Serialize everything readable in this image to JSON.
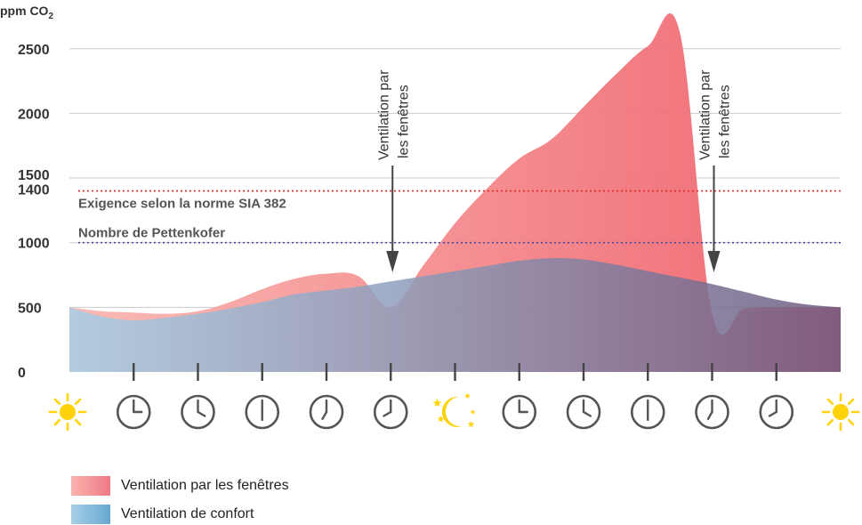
{
  "chart_data": {
    "type": "area",
    "ylabel": "ppm CO",
    "ylabel_subscript": "2",
    "ylim": [
      0,
      2700
    ],
    "y_ticks": [
      0,
      500,
      1000,
      1400,
      1500,
      2000,
      2500
    ],
    "x": [
      0,
      0.5,
      1,
      1.5,
      2,
      2.5,
      3,
      3.5,
      4,
      4.5,
      5,
      5.5,
      6,
      6.5,
      7,
      7.5,
      8,
      8.5,
      9,
      9.5,
      10,
      10.5,
      11,
      11.5,
      12
    ],
    "x_markers": [
      {
        "x": 0,
        "icon": "sun-icon"
      },
      {
        "x": 1,
        "icon": "clock-icon",
        "clock": "3:00"
      },
      {
        "x": 2,
        "icon": "clock-icon",
        "clock": "4:00"
      },
      {
        "x": 3,
        "icon": "clock-icon",
        "clock": "6:00"
      },
      {
        "x": 4,
        "icon": "clock-icon",
        "clock": "7:00"
      },
      {
        "x": 5,
        "icon": "clock-icon",
        "clock": "8:00"
      },
      {
        "x": 6,
        "icon": "moon-stars-icon"
      },
      {
        "x": 7,
        "icon": "clock-icon",
        "clock": "3:00"
      },
      {
        "x": 8,
        "icon": "clock-icon",
        "clock": "4:00"
      },
      {
        "x": 9,
        "icon": "clock-icon",
        "clock": "6:00"
      },
      {
        "x": 10,
        "icon": "clock-icon",
        "clock": "7:00"
      },
      {
        "x": 11,
        "icon": "clock-icon",
        "clock": "8:00"
      },
      {
        "x": 12,
        "icon": "sun-icon"
      }
    ],
    "series": [
      {
        "name": "Ventilation par les fenêtres",
        "color_light": "#f9b4ae",
        "color_dark": "#ee5a66",
        "values": [
          500,
          470,
          460,
          450,
          470,
          540,
          640,
          720,
          760,
          740,
          500,
          820,
          1150,
          1420,
          1650,
          1800,
          2050,
          2300,
          2520,
          2620,
          450,
          490,
          500,
          500,
          500
        ]
      },
      {
        "name": "Ventilation de confort",
        "color_light": "#a6cfe6",
        "color_dark": "#6e5a80",
        "values": [
          500,
          430,
          400,
          420,
          450,
          490,
          540,
          600,
          630,
          660,
          700,
          740,
          780,
          820,
          860,
          880,
          870,
          830,
          780,
          730,
          680,
          620,
          560,
          520,
          500
        ]
      }
    ],
    "reference_lines": [
      {
        "y": 1400,
        "label": "Exigence selon la norme SIA 382",
        "color": "#e02828"
      },
      {
        "y": 1000,
        "label": "Nombre de Pettenkofer",
        "color": "#4648a6"
      }
    ],
    "annotations": [
      {
        "x": 5,
        "line1": "Ventilation par",
        "line2": "les fenêtres",
        "arrow_to": 520
      },
      {
        "x": 10,
        "line1": "Ventilation par",
        "line2": "les fenêtres",
        "arrow_to": 520
      }
    ],
    "grid": true,
    "legend_position": "bottom-left",
    "colors": {
      "icon_yellow": "#ffd20a",
      "clock_grey": "#555555",
      "grid": "#cccccc"
    }
  }
}
